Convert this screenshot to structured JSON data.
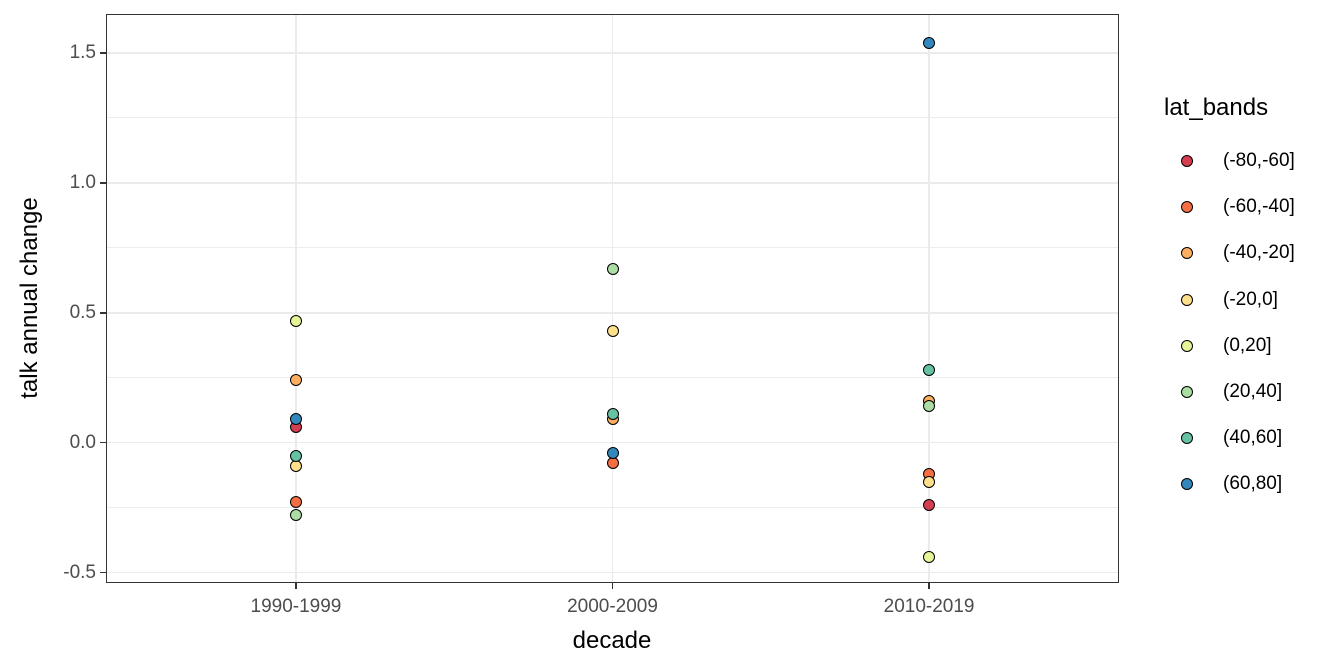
{
  "chart_data": {
    "type": "scatter",
    "xlabel": "decade",
    "ylabel": "talk annual change",
    "categories": [
      "1990-1999",
      "2000-2009",
      "2010-2019"
    ],
    "ylim": [
      -0.54,
      1.65
    ],
    "yticks": [
      {
        "value": 1.5,
        "label": "1.5"
      },
      {
        "value": 1.0,
        "label": "1.0"
      },
      {
        "value": 0.5,
        "label": "0.5"
      },
      {
        "value": 0.0,
        "label": "0.0"
      },
      {
        "value": -0.5,
        "label": "-0.5"
      }
    ],
    "yticks_minor": [
      1.25,
      0.75,
      0.25,
      -0.25
    ],
    "grid": "major+minor, light gray on white, dark panel border",
    "legend": {
      "title": "lat_bands",
      "position": "right",
      "entries": [
        {
          "label": "(-80,-60]",
          "color": "#d53e4f"
        },
        {
          "label": "(-60,-40]",
          "color": "#f46d43"
        },
        {
          "label": "(-40,-20]",
          "color": "#fdae61"
        },
        {
          "label": "(-20,0]",
          "color": "#fee08b"
        },
        {
          "label": "(0,20]",
          "color": "#e6f598"
        },
        {
          "label": "(20,40]",
          "color": "#abdda4"
        },
        {
          "label": "(40,60]",
          "color": "#66c2a5"
        },
        {
          "label": "(60,80]",
          "color": "#3288bd"
        }
      ]
    },
    "series": [
      {
        "name": "(-80,-60]",
        "color": "#d53e4f",
        "points": [
          {
            "x": "1990-1999",
            "y": 0.06
          },
          {
            "x": "2010-2019",
            "y": -0.24
          }
        ]
      },
      {
        "name": "(-60,-40]",
        "color": "#f46d43",
        "points": [
          {
            "x": "1990-1999",
            "y": -0.23
          },
          {
            "x": "2000-2009",
            "y": -0.08
          },
          {
            "x": "2010-2019",
            "y": -0.12
          }
        ]
      },
      {
        "name": "(-40,-20]",
        "color": "#fdae61",
        "points": [
          {
            "x": "1990-1999",
            "y": 0.24
          },
          {
            "x": "2000-2009",
            "y": 0.09
          },
          {
            "x": "2010-2019",
            "y": 0.16
          }
        ]
      },
      {
        "name": "(-20,0]",
        "color": "#fee08b",
        "points": [
          {
            "x": "1990-1999",
            "y": -0.09
          },
          {
            "x": "2000-2009",
            "y": 0.43
          },
          {
            "x": "2010-2019",
            "y": -0.15
          }
        ]
      },
      {
        "name": "(0,20]",
        "color": "#e6f598",
        "points": [
          {
            "x": "1990-1999",
            "y": 0.47
          },
          {
            "x": "2010-2019",
            "y": -0.44
          }
        ]
      },
      {
        "name": "(20,40]",
        "color": "#abdda4",
        "points": [
          {
            "x": "1990-1999",
            "y": -0.28
          },
          {
            "x": "2000-2009",
            "y": 0.67
          },
          {
            "x": "2010-2019",
            "y": 0.14
          }
        ]
      },
      {
        "name": "(40,60]",
        "color": "#66c2a5",
        "points": [
          {
            "x": "1990-1999",
            "y": -0.05
          },
          {
            "x": "2000-2009",
            "y": 0.11
          },
          {
            "x": "2010-2019",
            "y": 0.28
          }
        ]
      },
      {
        "name": "(60,80]",
        "color": "#3288bd",
        "points": [
          {
            "x": "1990-1999",
            "y": 0.09
          },
          {
            "x": "2000-2009",
            "y": -0.04
          },
          {
            "x": "2010-2019",
            "y": 1.54
          }
        ]
      }
    ],
    "colors": {
      "point_outline": "#000000",
      "tick_label": "#4d4d4d",
      "axis_title": "#000000",
      "panel_border": "#333333",
      "grid_major": "#ebebeb",
      "grid_minor": "#ededed",
      "background": "#ffffff"
    }
  }
}
